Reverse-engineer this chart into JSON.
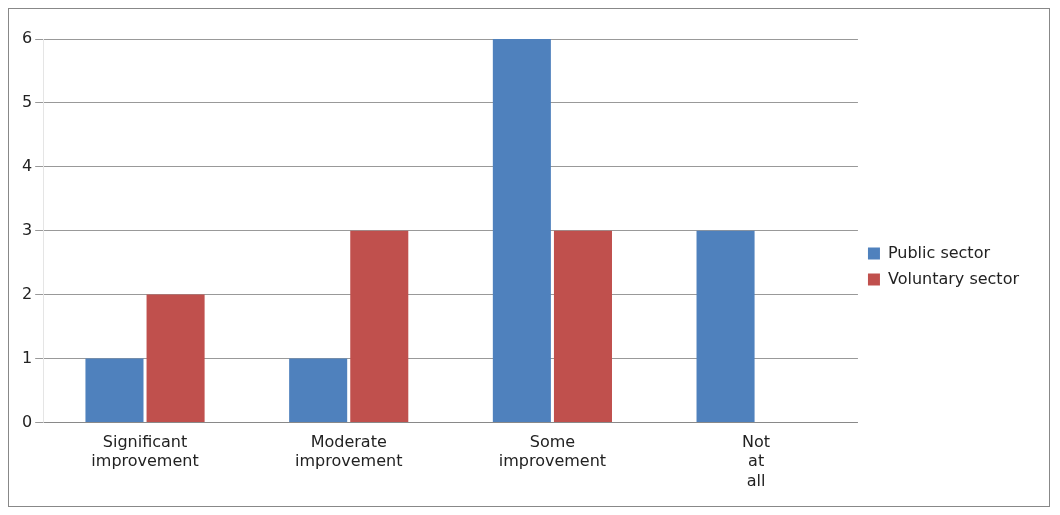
{
  "chart_data": {
    "type": "bar",
    "categories": [
      "Significant improvement",
      "Moderate improvement",
      "Some improvement",
      "Not at all"
    ],
    "series": [
      {
        "name": "Public sector",
        "color": "#4f81bd",
        "values": [
          1,
          1,
          6,
          3
        ]
      },
      {
        "name": "Voluntary sector",
        "color": "#c0504d",
        "values": [
          2,
          3,
          3,
          0
        ]
      }
    ],
    "ylim": [
      0,
      6
    ],
    "yticks": [
      0,
      1,
      2,
      3,
      4,
      5,
      6
    ],
    "grid": "y",
    "legend": "right"
  }
}
